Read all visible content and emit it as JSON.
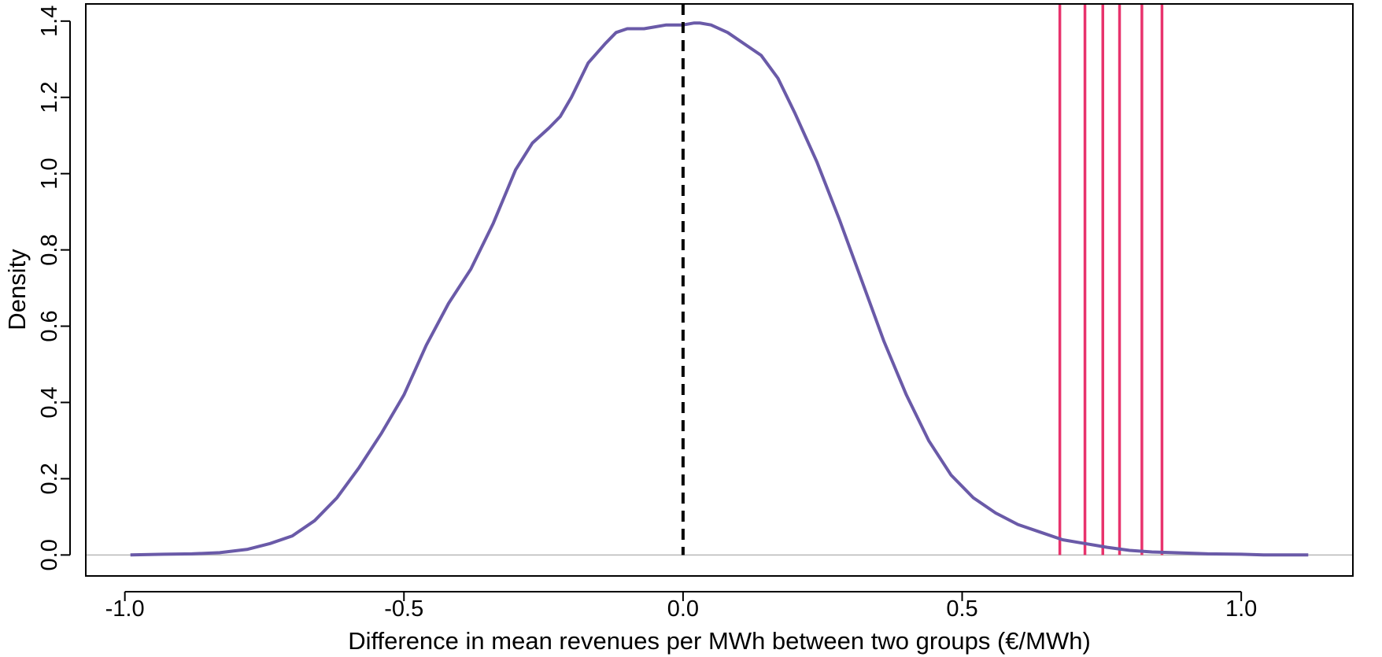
{
  "chart_data": {
    "type": "line",
    "title": "",
    "xlabel": "Difference in mean revenues per MWh between two groups (€/MWh)",
    "ylabel": "Density",
    "xlim": [
      -1.07,
      1.2
    ],
    "ylim": [
      -0.055,
      1.445
    ],
    "x_ticks": [
      -1.0,
      -0.5,
      0.0,
      0.5,
      1.0
    ],
    "x_tick_labels": [
      "-1.0",
      "-0.5",
      "0.0",
      "0.5",
      "1.0"
    ],
    "y_ticks": [
      0.0,
      0.2,
      0.4,
      0.6,
      0.8,
      1.0,
      1.2,
      1.4
    ],
    "y_tick_labels": [
      "0.0",
      "0.2",
      "0.4",
      "0.6",
      "0.8",
      "1.0",
      "1.2",
      "1.4"
    ],
    "series": [
      {
        "name": "density",
        "color": "#6a5aa8",
        "x": [
          -0.99,
          -0.93,
          -0.88,
          -0.83,
          -0.78,
          -0.74,
          -0.7,
          -0.66,
          -0.62,
          -0.58,
          -0.54,
          -0.5,
          -0.46,
          -0.42,
          -0.38,
          -0.34,
          -0.3,
          -0.27,
          -0.24,
          -0.22,
          -0.2,
          -0.17,
          -0.14,
          -0.12,
          -0.1,
          -0.07,
          -0.05,
          -0.03,
          0.0,
          0.02,
          0.03,
          0.05,
          0.08,
          0.11,
          0.14,
          0.17,
          0.2,
          0.24,
          0.28,
          0.32,
          0.36,
          0.4,
          0.44,
          0.48,
          0.52,
          0.56,
          0.6,
          0.64,
          0.68,
          0.72,
          0.76,
          0.8,
          0.84,
          0.88,
          0.94,
          1.0,
          1.04,
          1.12
        ],
        "y": [
          0.0,
          0.002,
          0.003,
          0.006,
          0.015,
          0.03,
          0.05,
          0.09,
          0.15,
          0.23,
          0.32,
          0.42,
          0.55,
          0.66,
          0.75,
          0.87,
          1.01,
          1.08,
          1.12,
          1.15,
          1.2,
          1.29,
          1.34,
          1.37,
          1.38,
          1.38,
          1.385,
          1.39,
          1.39,
          1.395,
          1.395,
          1.39,
          1.37,
          1.34,
          1.31,
          1.25,
          1.16,
          1.03,
          0.88,
          0.72,
          0.56,
          0.42,
          0.3,
          0.21,
          0.15,
          0.11,
          0.08,
          0.06,
          0.04,
          0.03,
          0.02,
          0.012,
          0.008,
          0.006,
          0.003,
          0.002,
          0.0,
          0.0
        ]
      }
    ],
    "reference_lines": {
      "zero_line": {
        "color": "#000000",
        "style": "dashed",
        "x": 0.0
      },
      "observed_values": {
        "color": "#e8336d",
        "x": [
          0.675,
          0.72,
          0.752,
          0.782,
          0.822,
          0.858
        ]
      },
      "baseline": {
        "color": "#b8b8b8",
        "y": 0.0
      }
    }
  }
}
